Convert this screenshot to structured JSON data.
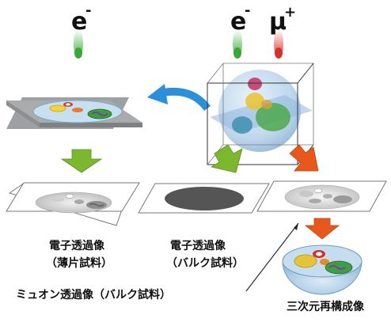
{
  "beams": {
    "electron_left": "e",
    "electron_right": "e",
    "minus": "-",
    "muon": "μ",
    "plus": "+"
  },
  "captions": {
    "thin_line1": "電子透過像",
    "thin_line2": "（薄片試料）",
    "bulk_line1": "電子透過像",
    "bulk_line2": "（バルク試料）",
    "muon": "ミュオン透過像（バルク試料）",
    "reconstruction": "三次元再構成像"
  },
  "colors": {
    "electron_beam": "#4db848",
    "muon_beam": "#e0413a",
    "blue_arrow": "#2b8fd9",
    "green_arrow": "#7cb82f",
    "orange_arrow": "#e8581c",
    "slab": "#a6a8ab",
    "dark_projection": "#555555"
  }
}
